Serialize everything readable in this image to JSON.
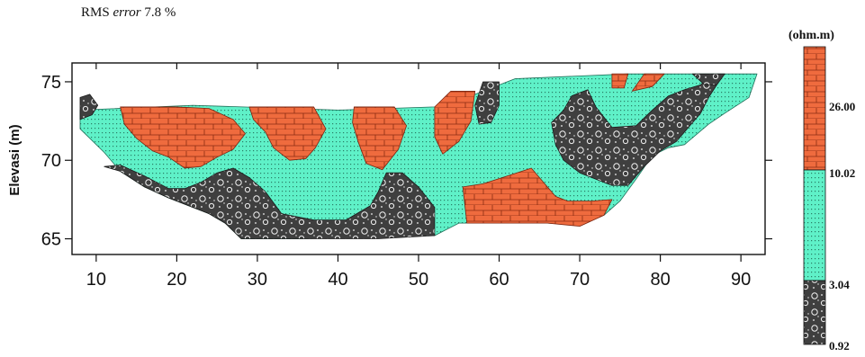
{
  "header": {
    "rms_prefix": "RMS",
    "rms_word": "error",
    "rms_value": "7.8 %"
  },
  "colors": {
    "high": "#ef6b3e",
    "mid": "#5ff1c8",
    "low": "#3f3f3f",
    "frame": "#111111"
  },
  "chart_data": {
    "type": "heatmap",
    "subtype": "resistivity-section",
    "ylabel": "Elevasi (m)",
    "xlabel": "",
    "xlim": [
      7,
      93
    ],
    "ylim": [
      64,
      76.2
    ],
    "x_ticks": [
      10,
      20,
      30,
      40,
      50,
      60,
      70,
      80,
      90
    ],
    "y_ticks": [
      65,
      70,
      75
    ],
    "colorbar": {
      "unit": "(ohm.m)",
      "levels": [
        0.92,
        3.04,
        10.02,
        26.0
      ],
      "level_labels": [
        "0.92",
        "3.04",
        "10.02",
        "26.00"
      ],
      "classes": [
        {
          "range": [
            0.92,
            3.04
          ],
          "color": "#3f3f3f",
          "pattern": "gravel"
        },
        {
          "range": [
            3.04,
            10.02
          ],
          "color": "#5ff1c8",
          "pattern": "sand"
        },
        {
          "range": [
            10.02,
            26.0
          ],
          "color": "#ef6b3e",
          "pattern": "brick"
        }
      ]
    },
    "regions": [
      {
        "class": "mid",
        "points": [
          [
            8,
            73.2
          ],
          [
            22,
            73.5
          ],
          [
            40,
            73.2
          ],
          [
            52,
            73.4
          ],
          [
            57,
            74.2
          ],
          [
            62,
            75.2
          ],
          [
            76,
            75.5
          ],
          [
            92,
            75.5
          ],
          [
            91,
            74
          ],
          [
            88,
            73
          ],
          [
            86,
            72.3
          ],
          [
            83,
            71
          ],
          [
            81,
            70.8
          ],
          [
            79,
            70.3
          ],
          [
            77,
            68.8
          ],
          [
            75,
            67.4
          ],
          [
            73,
            66.5
          ],
          [
            70,
            65.9
          ],
          [
            66,
            66
          ],
          [
            60,
            66
          ],
          [
            55,
            66
          ],
          [
            52,
            65.2
          ],
          [
            35,
            65
          ],
          [
            28,
            65
          ],
          [
            26,
            66
          ],
          [
            24,
            66.6
          ],
          [
            22,
            67
          ],
          [
            19,
            67.6
          ],
          [
            16,
            68.3
          ],
          [
            13,
            69.3
          ],
          [
            11,
            70.5
          ],
          [
            8,
            72
          ]
        ]
      },
      {
        "class": "low",
        "points": [
          [
            11,
            69.6
          ],
          [
            13,
            69.3
          ],
          [
            16,
            68.3
          ],
          [
            19,
            67.6
          ],
          [
            22,
            67
          ],
          [
            24,
            66.6
          ],
          [
            26,
            66
          ],
          [
            28,
            65
          ],
          [
            35,
            65
          ],
          [
            45,
            65
          ],
          [
            52,
            65.2
          ],
          [
            52,
            67
          ],
          [
            50,
            68.3
          ],
          [
            48,
            69.2
          ],
          [
            46,
            69.2
          ],
          [
            45,
            68
          ],
          [
            44,
            67.1
          ],
          [
            41,
            66.2
          ],
          [
            37,
            66.2
          ],
          [
            33,
            66.6
          ],
          [
            31,
            68
          ],
          [
            29,
            68.9
          ],
          [
            27,
            69.5
          ],
          [
            25,
            69.2
          ],
          [
            23,
            68.6
          ],
          [
            21,
            68.2
          ],
          [
            19,
            68.2
          ],
          [
            16,
            69
          ],
          [
            13,
            69.7
          ]
        ]
      },
      {
        "class": "low",
        "points": [
          [
            68,
            73.2
          ],
          [
            69,
            74.1
          ],
          [
            71,
            74.5
          ],
          [
            72,
            73.4
          ],
          [
            74,
            72.1
          ],
          [
            77,
            72.2
          ],
          [
            79,
            73.2
          ],
          [
            81,
            74.1
          ],
          [
            83,
            74.5
          ],
          [
            85,
            74.8
          ],
          [
            86,
            75.3
          ],
          [
            87,
            74.8
          ],
          [
            86,
            74
          ],
          [
            85,
            73
          ],
          [
            83.5,
            72.1
          ],
          [
            82,
            71.2
          ],
          [
            80,
            70.6
          ],
          [
            78,
            69.6
          ],
          [
            76,
            68.4
          ],
          [
            74,
            68.4
          ],
          [
            72,
            68.8
          ],
          [
            70,
            69.2
          ],
          [
            68,
            70
          ],
          [
            67,
            71
          ],
          [
            66.5,
            72.4
          ]
        ]
      },
      {
        "class": "low",
        "points": [
          [
            58,
            75
          ],
          [
            60,
            75
          ],
          [
            60,
            73.5
          ],
          [
            59,
            72.4
          ],
          [
            57.5,
            72.3
          ],
          [
            57,
            73.5
          ]
        ]
      },
      {
        "class": "low",
        "points": [
          [
            8,
            72.6
          ],
          [
            9.5,
            72.9
          ],
          [
            10.2,
            73.5
          ],
          [
            9.2,
            74.2
          ],
          [
            8,
            74
          ]
        ]
      },
      {
        "class": "low",
        "points": [
          [
            84,
            75.5
          ],
          [
            88,
            75.5
          ],
          [
            87,
            74.8
          ],
          [
            85.5,
            74.8
          ]
        ]
      },
      {
        "class": "high",
        "points": [
          [
            13,
            73.4
          ],
          [
            20,
            73.4
          ],
          [
            24,
            73.3
          ],
          [
            27,
            72.6
          ],
          [
            28.5,
            71.7
          ],
          [
            27,
            70.7
          ],
          [
            25,
            70.2
          ],
          [
            23,
            69.6
          ],
          [
            21,
            69.5
          ],
          [
            19,
            70.2
          ],
          [
            17,
            70.6
          ],
          [
            15,
            71.4
          ],
          [
            13.5,
            72.3
          ]
        ]
      },
      {
        "class": "high",
        "points": [
          [
            29,
            73.4
          ],
          [
            37,
            73.4
          ],
          [
            38.5,
            72
          ],
          [
            37.2,
            70.8
          ],
          [
            36,
            70.1
          ],
          [
            34,
            70
          ],
          [
            32,
            70.8
          ],
          [
            31,
            71.8
          ],
          [
            29.5,
            72.6
          ]
        ]
      },
      {
        "class": "high",
        "points": [
          [
            42,
            73.4
          ],
          [
            47,
            73.4
          ],
          [
            48.5,
            72.2
          ],
          [
            47.5,
            70.7
          ],
          [
            45.5,
            69.4
          ],
          [
            43.5,
            69.8
          ],
          [
            42.5,
            71.2
          ],
          [
            41.8,
            72.4
          ]
        ]
      },
      {
        "class": "high",
        "points": [
          [
            52,
            73.4
          ],
          [
            54,
            74.4
          ],
          [
            57,
            74.4
          ],
          [
            56.5,
            72.5
          ],
          [
            55,
            71.2
          ],
          [
            53,
            70.4
          ],
          [
            52,
            71.5
          ]
        ]
      },
      {
        "class": "high",
        "points": [
          [
            55.5,
            68.3
          ],
          [
            58,
            68.5
          ],
          [
            61,
            69
          ],
          [
            64,
            69.5
          ],
          [
            65.5,
            68.6
          ],
          [
            67,
            67.7
          ],
          [
            68.5,
            67.4
          ],
          [
            71.5,
            67.4
          ],
          [
            74,
            67.5
          ],
          [
            73,
            66.5
          ],
          [
            70,
            65.8
          ],
          [
            66,
            66
          ],
          [
            62,
            66
          ],
          [
            56,
            66
          ]
        ]
      },
      {
        "class": "high",
        "points": [
          [
            76.5,
            74.4
          ],
          [
            79,
            74.7
          ],
          [
            80.5,
            75.5
          ],
          [
            78,
            75.5
          ]
        ]
      },
      {
        "class": "high",
        "points": [
          [
            74,
            75.5
          ],
          [
            76,
            75.5
          ],
          [
            75.5,
            74.6
          ],
          [
            74,
            74.6
          ]
        ]
      }
    ]
  }
}
